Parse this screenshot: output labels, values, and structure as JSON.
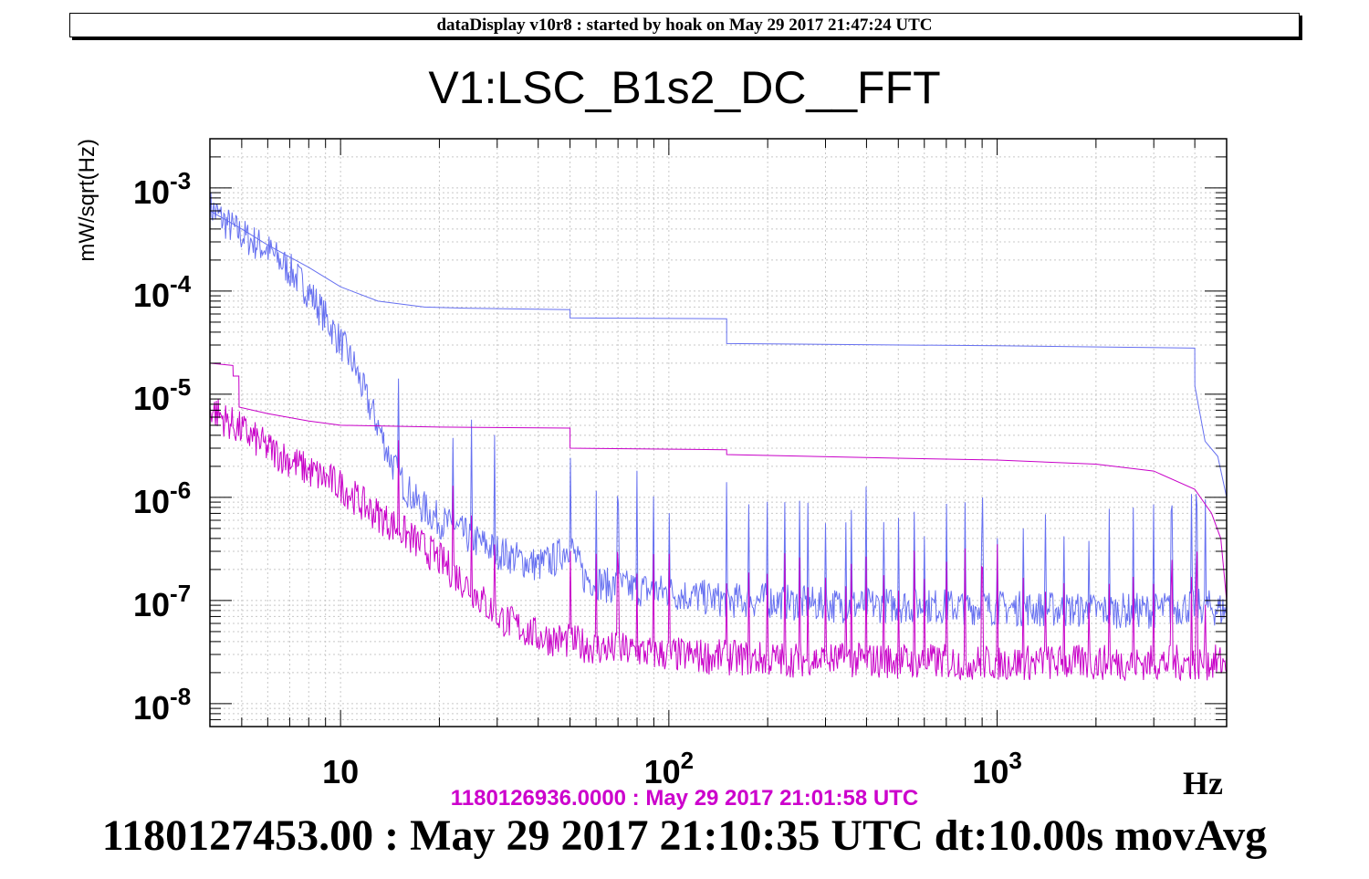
{
  "header": {
    "banner": "dataDisplay v10r8 : started by hoak on May 29 2017 21:47:24 UTC"
  },
  "footer": {
    "reference_time": "1180126936.0000 : May 29 2017 21:01:58 UTC",
    "current_time": "1180127453.00 : May 29 2017 21:10:35 UTC dt:10.00s movAvg"
  },
  "colors": {
    "blue_series": "#6670f0",
    "magenta_series": "#c800c8",
    "grid": "#c8c8c8",
    "frame": "#000000"
  },
  "chart_data": {
    "type": "line",
    "title": "V1:LSC_B1s2_DC__FFT",
    "xlabel": "Hz",
    "ylabel": "mW/sqrt(Hz)",
    "x_scale": "log",
    "y_scale": "log",
    "xlim": [
      4,
      5000
    ],
    "ylim": [
      6e-09,
      0.003
    ],
    "grid": true,
    "x_tick_labels": [
      {
        "base": "10",
        "exp": "",
        "value": 10
      },
      {
        "base": "10",
        "exp": "2",
        "value": 100
      },
      {
        "base": "10",
        "exp": "3",
        "value": 1000
      }
    ],
    "y_tick_labels": [
      {
        "base": "10",
        "exp": "-3",
        "value": 0.001
      },
      {
        "base": "10",
        "exp": "-4",
        "value": 0.0001
      },
      {
        "base": "10",
        "exp": "-5",
        "value": 1e-05
      },
      {
        "base": "10",
        "exp": "-6",
        "value": 1e-06
      },
      {
        "base": "10",
        "exp": "-7",
        "value": 1e-07
      },
      {
        "base": "10",
        "exp": "-8",
        "value": 1e-08
      }
    ],
    "series": [
      {
        "color": "#6670f0",
        "kind": "noise",
        "points": [
          [
            4,
            0.00065
          ],
          [
            4.5,
            0.00045
          ],
          [
            5,
            0.00035
          ],
          [
            6,
            0.00025
          ],
          [
            7,
            0.00016
          ],
          [
            8,
            0.0001
          ],
          [
            9,
            5.5e-05
          ],
          [
            10,
            3.2e-05
          ],
          [
            11,
            1.9e-05
          ],
          [
            12,
            9e-06
          ],
          [
            13,
            5e-06
          ],
          [
            14,
            2.6e-06
          ],
          [
            15,
            1.6e-06
          ],
          [
            17,
            9e-07
          ],
          [
            20,
            6e-07
          ],
          [
            25,
            4e-07
          ],
          [
            30,
            3e-07
          ],
          [
            35,
            2.5e-07
          ],
          [
            40,
            2.2e-07
          ],
          [
            45,
            2.5e-07
          ],
          [
            50,
            3.5e-07
          ],
          [
            55,
            1.7e-07
          ],
          [
            65,
            1.4e-07
          ],
          [
            80,
            1.3e-07
          ],
          [
            100,
            1.2e-07
          ],
          [
            120,
            1.1e-07
          ],
          [
            150,
            1e-07
          ],
          [
            200,
            1e-07
          ],
          [
            300,
            9e-08
          ],
          [
            500,
            9e-08
          ],
          [
            1000,
            8.5e-08
          ],
          [
            2000,
            8e-08
          ],
          [
            3000,
            8e-08
          ],
          [
            4000,
            9e-08
          ],
          [
            5000,
            8e-08
          ]
        ]
      },
      {
        "color": "#6670f0",
        "kind": "steps",
        "points": [
          [
            4,
            0.0006
          ],
          [
            5,
            0.0004
          ],
          [
            6,
            0.00028
          ],
          [
            8,
            0.00017
          ],
          [
            10,
            0.00011
          ],
          [
            13,
            8e-05
          ],
          [
            18,
            7e-05
          ],
          [
            25,
            6.8e-05
          ],
          [
            50,
            6.6e-05
          ],
          [
            50.01,
            5.5e-05
          ],
          [
            150,
            5.4e-05
          ],
          [
            150.01,
            3.1e-05
          ],
          [
            1000,
            2.95e-05
          ],
          [
            2500,
            2.85e-05
          ],
          [
            4000,
            2.8e-05
          ],
          [
            4001,
            1.2e-05
          ],
          [
            4300,
            3.5e-06
          ],
          [
            4700,
            2.5e-06
          ],
          [
            5000,
            1e-06
          ]
        ]
      },
      {
        "color": "#c800c8",
        "kind": "noise",
        "points": [
          [
            4,
            7.5e-06
          ],
          [
            4.5,
            5.5e-06
          ],
          [
            5,
            4.5e-06
          ],
          [
            6,
            3e-06
          ],
          [
            7,
            2.3e-06
          ],
          [
            8,
            1.8e-06
          ],
          [
            10,
            1.3e-06
          ],
          [
            12,
            8e-07
          ],
          [
            15,
            5e-07
          ],
          [
            20,
            2.5e-07
          ],
          [
            25,
            1.3e-07
          ],
          [
            30,
            7e-08
          ],
          [
            40,
            4.5e-08
          ],
          [
            50,
            4e-08
          ],
          [
            60,
            3.5e-08
          ],
          [
            80,
            3.2e-08
          ],
          [
            100,
            3e-08
          ],
          [
            150,
            2.8e-08
          ],
          [
            200,
            2.7e-08
          ],
          [
            500,
            2.6e-08
          ],
          [
            1000,
            2.5e-08
          ],
          [
            2000,
            2.5e-08
          ],
          [
            5000,
            2.5e-08
          ]
        ]
      },
      {
        "color": "#c800c8",
        "kind": "steps",
        "points": [
          [
            4,
            2e-05
          ],
          [
            4.7,
            1.9e-05
          ],
          [
            4.71,
            1.5e-05
          ],
          [
            4.9,
            1.5e-05
          ],
          [
            4.91,
            7.5e-06
          ],
          [
            6,
            6.5e-06
          ],
          [
            8,
            5.5e-06
          ],
          [
            10,
            5e-06
          ],
          [
            20,
            4.8e-06
          ],
          [
            50,
            4.7e-06
          ],
          [
            50.01,
            3e-06
          ],
          [
            150,
            2.9e-06
          ],
          [
            150.01,
            2.6e-06
          ],
          [
            500,
            2.4e-06
          ],
          [
            1000,
            2.3e-06
          ],
          [
            2000,
            2.1e-06
          ],
          [
            3000,
            1.8e-06
          ],
          [
            4000,
            1.2e-06
          ],
          [
            4500,
            7e-07
          ],
          [
            4800,
            4e-07
          ],
          [
            5000,
            1e-07
          ]
        ]
      }
    ]
  }
}
